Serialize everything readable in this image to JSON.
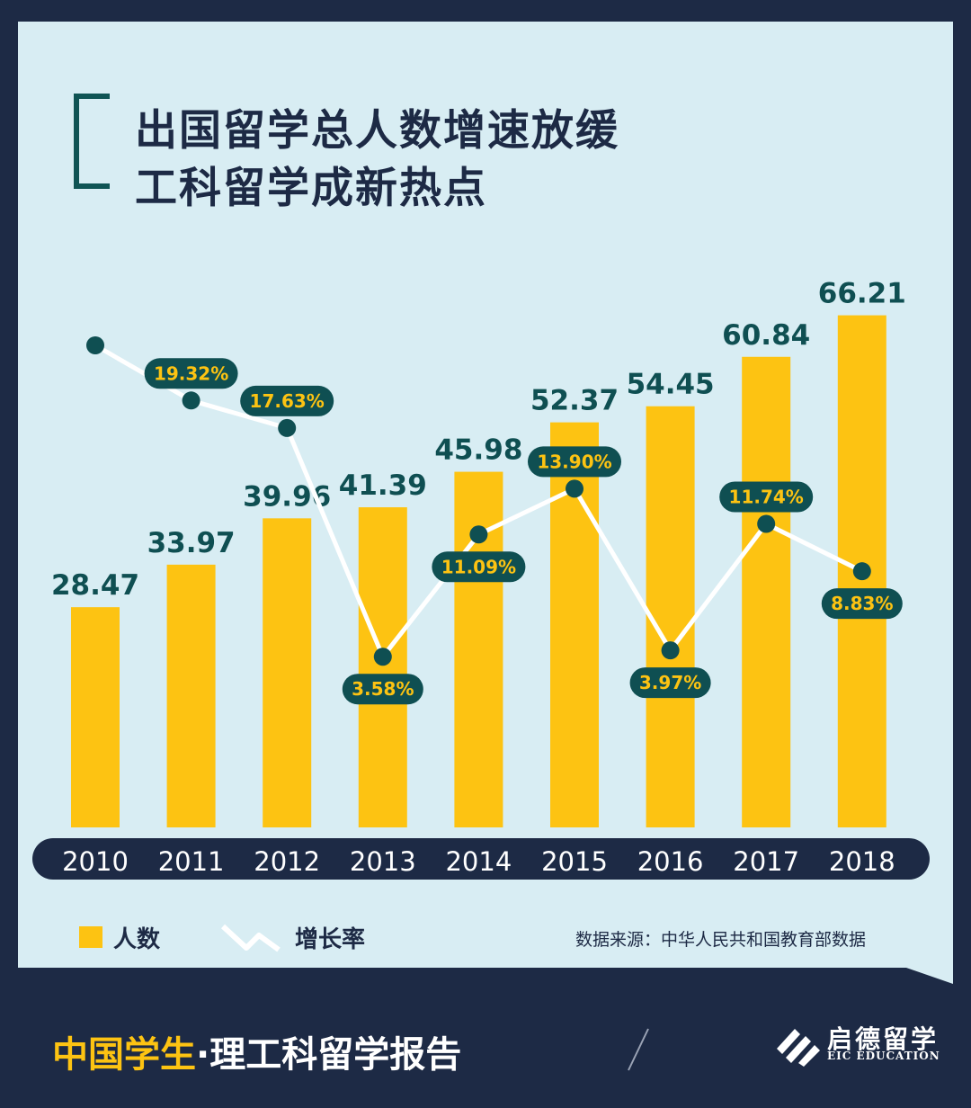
{
  "title": {
    "line1": "出国留学总人数增速放缓",
    "line2": "工科留学成新热点"
  },
  "chart_data": {
    "type": "bar",
    "categories": [
      "2010",
      "2011",
      "2012",
      "2013",
      "2014",
      "2015",
      "2016",
      "2017",
      "2018"
    ],
    "series": [
      {
        "name": "人数",
        "type": "bar",
        "values": [
          28.47,
          33.97,
          39.96,
          41.39,
          45.98,
          52.37,
          54.45,
          60.84,
          66.21
        ],
        "labels": [
          "28.47",
          "33.97",
          "39.96",
          "41.39",
          "45.98",
          "52.37",
          "54.45",
          "60.84",
          "66.21"
        ],
        "color": "#fdc312"
      },
      {
        "name": "增长率",
        "type": "line",
        "values": [
          null,
          19.32,
          17.63,
          3.58,
          11.09,
          13.9,
          3.97,
          11.74,
          8.83
        ],
        "labels": [
          null,
          "19.32%",
          "17.63%",
          "3.58%",
          "11.09%",
          "13.90%",
          "3.97%",
          "11.74%",
          "8.83%"
        ],
        "color": "#ffffff"
      }
    ],
    "legend": {
      "position": "bottom-left"
    }
  },
  "source_note": "数据来源：中华人民共和国教育部数据",
  "footer": {
    "part1": "中国学生",
    "dot": "·",
    "part2": "理工科留学报告"
  },
  "logo": {
    "name": "启德留学",
    "sub": "EIC EDUCATION"
  },
  "colors": {
    "background": "#1d2a45",
    "panel": "#d8edf3",
    "bar": "#fdc312",
    "accent": "#0f4f52",
    "line": "#ffffff"
  }
}
